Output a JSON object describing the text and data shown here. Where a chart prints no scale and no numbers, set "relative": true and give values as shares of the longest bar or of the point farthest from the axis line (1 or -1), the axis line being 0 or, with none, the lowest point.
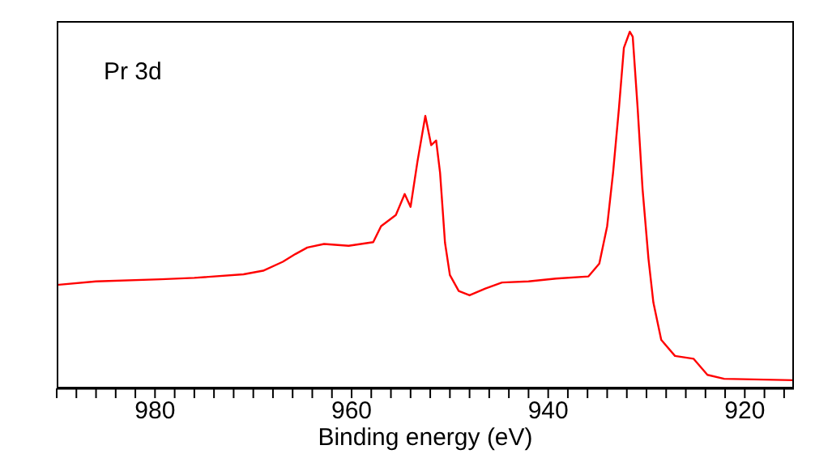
{
  "chart_data": {
    "type": "line",
    "relative": true,
    "xlabel": "Binding energy (eV)",
    "annotations": [
      "Pr 3d"
    ],
    "xlim": [
      990,
      915
    ],
    "xticks": [
      {
        "value": 990,
        "label": null
      },
      {
        "value": 988,
        "label": null
      },
      {
        "value": 986,
        "label": null
      },
      {
        "value": 984,
        "label": null
      },
      {
        "value": 982,
        "label": null
      },
      980,
      {
        "value": 978,
        "label": null
      },
      {
        "value": 976,
        "label": null
      },
      {
        "value": 974,
        "label": null
      },
      {
        "value": 972,
        "label": null
      },
      {
        "value": 970,
        "label": null
      },
      {
        "value": 968,
        "label": null
      },
      {
        "value": 966,
        "label": null
      },
      {
        "value": 964,
        "label": null
      },
      {
        "value": 962,
        "label": null
      },
      960,
      {
        "value": 958,
        "label": null
      },
      {
        "value": 956,
        "label": null
      },
      {
        "value": 954,
        "label": null
      },
      {
        "value": 952,
        "label": null
      },
      {
        "value": 950,
        "label": null
      },
      {
        "value": 948,
        "label": null
      },
      {
        "value": 946,
        "label": null
      },
      {
        "value": 944,
        "label": null
      },
      {
        "value": 942,
        "label": null
      },
      940,
      {
        "value": 938,
        "label": null
      },
      {
        "value": 936,
        "label": null
      },
      {
        "value": 934,
        "label": null
      },
      {
        "value": 932,
        "label": null
      },
      {
        "value": 930,
        "label": null
      },
      {
        "value": 928,
        "label": null
      },
      {
        "value": 926,
        "label": null
      },
      {
        "value": 924,
        "label": null
      },
      {
        "value": 922,
        "label": null
      },
      920,
      {
        "value": 918,
        "label": null
      },
      {
        "value": 916,
        "label": null
      }
    ],
    "x": [
      990,
      986,
      979.4,
      976,
      971,
      969,
      967,
      965.7,
      964.5,
      962.8,
      960.3,
      957.8,
      957,
      955.5,
      954.6,
      954.0,
      953.3,
      952.5,
      951.9,
      951.4,
      951,
      950.5,
      950,
      949.1,
      948,
      946.4,
      944.7,
      942,
      939.2,
      935.9,
      934.8,
      934,
      933.4,
      932.8,
      932.3,
      931.7,
      931.4,
      930.9,
      930.4,
      929.8,
      929.3,
      928.5,
      927.1,
      925.2,
      923.8,
      922.1,
      915
    ],
    "series": [
      {
        "color": "#ff0000",
        "values": [
          0.29,
          0.3,
          0.306,
          0.31,
          0.32,
          0.33,
          0.355,
          0.377,
          0.395,
          0.405,
          0.4,
          0.41,
          0.455,
          0.486,
          0.545,
          0.509,
          0.636,
          0.764,
          0.682,
          0.695,
          0.605,
          0.409,
          0.318,
          0.273,
          0.261,
          0.28,
          0.297,
          0.3,
          0.308,
          0.314,
          0.35,
          0.455,
          0.605,
          0.786,
          0.955,
          1.0,
          0.986,
          0.786,
          0.559,
          0.364,
          0.241,
          0.136,
          0.091,
          0.083,
          0.038,
          0.027,
          0.023
        ]
      }
    ],
    "line_style": "solid"
  }
}
